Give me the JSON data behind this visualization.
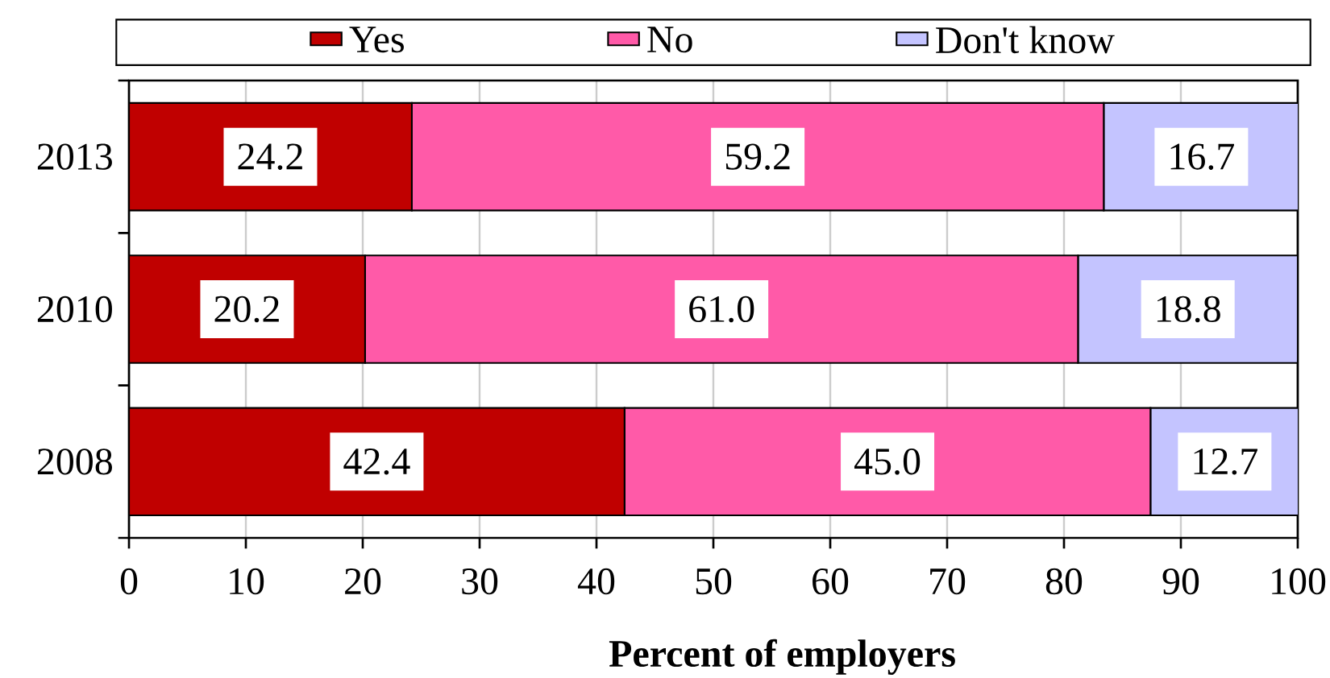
{
  "chart_data": {
    "type": "bar",
    "orientation": "horizontal",
    "stacked": true,
    "xlabel": "Percent of employers",
    "categories": [
      "2013",
      "2010",
      "2008"
    ],
    "series": [
      {
        "name": "Yes",
        "color": "#c00000",
        "values": [
          24.2,
          20.2,
          42.4
        ],
        "value_labels": [
          "24.2",
          "20.2",
          "42.4"
        ]
      },
      {
        "name": "No",
        "color": "#ff5aa8",
        "values": [
          59.2,
          61.0,
          45.0
        ],
        "value_labels": [
          "59.2",
          "61.0",
          "45.0"
        ]
      },
      {
        "name": "Don't know",
        "color": "#c4c4ff",
        "values": [
          16.7,
          18.8,
          12.7
        ],
        "value_labels": [
          "16.7",
          "18.8",
          "12.7"
        ]
      }
    ],
    "xlim": [
      0,
      100
    ],
    "xticks": [
      0,
      10,
      20,
      30,
      40,
      50,
      60,
      70,
      80,
      90,
      100
    ],
    "grid": "x",
    "legend": "top"
  }
}
